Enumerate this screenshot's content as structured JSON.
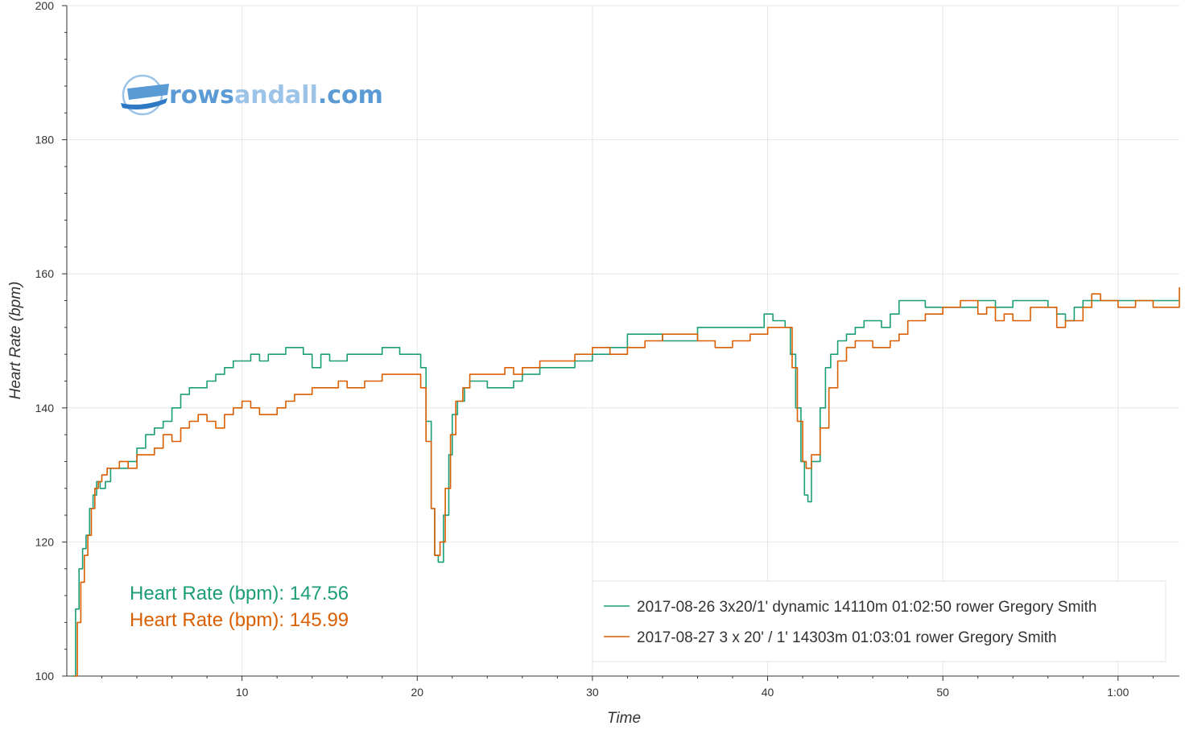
{
  "logo": {
    "part1": "rows",
    "part2": "andall",
    "part3": ".com",
    "color_main": "#5b9bd5",
    "color_light": "#9cc3e8"
  },
  "averages": [
    {
      "text": "Heart Rate (bpm): 147.56",
      "color": "#1b9e77"
    },
    {
      "text": "Heart Rate (bpm): 145.99",
      "color": "#d95f02"
    }
  ],
  "chart_data": {
    "type": "line",
    "title": "",
    "xlabel": "Time",
    "ylabel": "Heart Rate (bpm)",
    "xlim": [
      0,
      63.5
    ],
    "ylim": [
      100,
      200
    ],
    "x_unit": "minutes",
    "xticks": [
      {
        "value": 10,
        "label": "10"
      },
      {
        "value": 20,
        "label": "20"
      },
      {
        "value": 30,
        "label": "30"
      },
      {
        "value": 40,
        "label": "40"
      },
      {
        "value": 50,
        "label": "50"
      },
      {
        "value": 60,
        "label": "1:00"
      }
    ],
    "yticks": [
      {
        "value": 100,
        "label": "100"
      },
      {
        "value": 120,
        "label": "120"
      },
      {
        "value": 140,
        "label": "140"
      },
      {
        "value": 160,
        "label": "160"
      },
      {
        "value": 180,
        "label": "180"
      },
      {
        "value": 200,
        "label": "200"
      }
    ],
    "grid": true,
    "legend_position": "bottom-right",
    "series": [
      {
        "name": "2017-08-26 3x20/1' dynamic 14110m 01:02:50 rower Gregory Smith",
        "color": "#1b9e77",
        "points": [
          [
            0.3,
            100
          ],
          [
            0.5,
            110
          ],
          [
            0.7,
            116
          ],
          [
            0.9,
            119
          ],
          [
            1.1,
            121
          ],
          [
            1.3,
            125
          ],
          [
            1.5,
            127
          ],
          [
            1.7,
            129
          ],
          [
            1.9,
            128
          ],
          [
            2.2,
            129
          ],
          [
            2.5,
            131
          ],
          [
            3.0,
            131
          ],
          [
            3.5,
            132
          ],
          [
            4.0,
            134
          ],
          [
            4.5,
            136
          ],
          [
            5.0,
            137
          ],
          [
            5.5,
            138
          ],
          [
            6.0,
            140
          ],
          [
            6.5,
            142
          ],
          [
            7.0,
            143
          ],
          [
            7.5,
            143
          ],
          [
            8.0,
            144
          ],
          [
            8.5,
            145
          ],
          [
            9.0,
            146
          ],
          [
            9.5,
            147
          ],
          [
            10.0,
            147
          ],
          [
            10.5,
            148
          ],
          [
            11.0,
            147
          ],
          [
            11.5,
            148
          ],
          [
            12.0,
            148
          ],
          [
            12.5,
            149
          ],
          [
            13.0,
            149
          ],
          [
            13.5,
            148
          ],
          [
            14.0,
            146
          ],
          [
            14.5,
            148
          ],
          [
            15.0,
            147
          ],
          [
            16.0,
            148
          ],
          [
            17.0,
            148
          ],
          [
            18.0,
            149
          ],
          [
            19.0,
            148
          ],
          [
            19.8,
            148
          ],
          [
            20.2,
            146
          ],
          [
            20.5,
            138
          ],
          [
            20.8,
            125
          ],
          [
            21.0,
            118
          ],
          [
            21.2,
            117
          ],
          [
            21.5,
            124
          ],
          [
            21.8,
            133
          ],
          [
            22.0,
            139
          ],
          [
            22.3,
            141
          ],
          [
            22.7,
            143
          ],
          [
            23.0,
            144
          ],
          [
            23.5,
            144
          ],
          [
            24.0,
            143
          ],
          [
            25.0,
            143
          ],
          [
            25.5,
            144
          ],
          [
            26.0,
            145
          ],
          [
            27.0,
            146
          ],
          [
            28.0,
            146
          ],
          [
            29.0,
            147
          ],
          [
            30.0,
            148
          ],
          [
            31.0,
            149
          ],
          [
            32.0,
            151
          ],
          [
            33.0,
            151
          ],
          [
            34.0,
            150
          ],
          [
            35.0,
            150
          ],
          [
            36.0,
            152
          ],
          [
            37.0,
            152
          ],
          [
            38.0,
            152
          ],
          [
            39.0,
            152
          ],
          [
            39.8,
            154
          ],
          [
            40.3,
            153
          ],
          [
            41.0,
            152
          ],
          [
            41.3,
            148
          ],
          [
            41.6,
            140
          ],
          [
            41.9,
            132
          ],
          [
            42.1,
            127
          ],
          [
            42.3,
            126
          ],
          [
            42.5,
            132
          ],
          [
            43.0,
            140
          ],
          [
            43.3,
            146
          ],
          [
            43.6,
            148
          ],
          [
            44.0,
            150
          ],
          [
            44.5,
            151
          ],
          [
            45.0,
            152
          ],
          [
            45.5,
            153
          ],
          [
            46.0,
            153
          ],
          [
            46.5,
            152
          ],
          [
            47.0,
            154
          ],
          [
            47.5,
            156
          ],
          [
            48.0,
            156
          ],
          [
            49.0,
            155
          ],
          [
            50.0,
            155
          ],
          [
            51.0,
            155
          ],
          [
            52.0,
            156
          ],
          [
            53.0,
            155
          ],
          [
            54.0,
            156
          ],
          [
            55.0,
            156
          ],
          [
            56.0,
            155
          ],
          [
            56.5,
            154
          ],
          [
            57.0,
            153
          ],
          [
            57.5,
            155
          ],
          [
            58.0,
            156
          ],
          [
            59.0,
            156
          ],
          [
            60.0,
            156
          ],
          [
            61.0,
            156
          ],
          [
            62.0,
            156
          ],
          [
            63.0,
            156
          ],
          [
            63.5,
            156
          ]
        ]
      },
      {
        "name": "2017-08-27 3 x 20' / 1' 14303m 01:03:01 rower Gregory Smith",
        "color": "#d95f02",
        "points": [
          [
            0.4,
            100
          ],
          [
            0.6,
            108
          ],
          [
            0.8,
            114
          ],
          [
            1.0,
            118
          ],
          [
            1.2,
            121
          ],
          [
            1.4,
            125
          ],
          [
            1.6,
            128
          ],
          [
            1.8,
            129
          ],
          [
            2.0,
            130
          ],
          [
            2.3,
            131
          ],
          [
            2.6,
            131
          ],
          [
            3.0,
            132
          ],
          [
            3.5,
            131
          ],
          [
            4.0,
            133
          ],
          [
            4.5,
            133
          ],
          [
            5.0,
            134
          ],
          [
            5.5,
            136
          ],
          [
            6.0,
            135
          ],
          [
            6.5,
            137
          ],
          [
            7.0,
            138
          ],
          [
            7.5,
            139
          ],
          [
            8.0,
            138
          ],
          [
            8.5,
            137
          ],
          [
            9.0,
            139
          ],
          [
            9.5,
            140
          ],
          [
            10.0,
            141
          ],
          [
            10.5,
            140
          ],
          [
            11.0,
            139
          ],
          [
            11.5,
            139
          ],
          [
            12.0,
            140
          ],
          [
            12.5,
            141
          ],
          [
            13.0,
            142
          ],
          [
            14.0,
            143
          ],
          [
            15.0,
            143
          ],
          [
            15.5,
            144
          ],
          [
            16.0,
            143
          ],
          [
            17.0,
            144
          ],
          [
            18.0,
            145
          ],
          [
            19.0,
            145
          ],
          [
            19.8,
            145
          ],
          [
            20.2,
            143
          ],
          [
            20.5,
            135
          ],
          [
            20.8,
            125
          ],
          [
            21.0,
            118
          ],
          [
            21.3,
            120
          ],
          [
            21.6,
            128
          ],
          [
            21.9,
            136
          ],
          [
            22.2,
            141
          ],
          [
            22.6,
            143
          ],
          [
            23.0,
            145
          ],
          [
            24.0,
            145
          ],
          [
            25.0,
            146
          ],
          [
            25.5,
            145
          ],
          [
            26.0,
            146
          ],
          [
            27.0,
            147
          ],
          [
            28.0,
            147
          ],
          [
            29.0,
            148
          ],
          [
            30.0,
            149
          ],
          [
            31.0,
            148
          ],
          [
            32.0,
            149
          ],
          [
            33.0,
            150
          ],
          [
            34.0,
            151
          ],
          [
            35.0,
            151
          ],
          [
            36.0,
            150
          ],
          [
            37.0,
            149
          ],
          [
            38.0,
            150
          ],
          [
            39.0,
            151
          ],
          [
            40.0,
            152
          ],
          [
            41.0,
            152
          ],
          [
            41.4,
            146
          ],
          [
            41.7,
            138
          ],
          [
            42.0,
            132
          ],
          [
            42.2,
            131
          ],
          [
            42.5,
            133
          ],
          [
            43.0,
            137
          ],
          [
            43.5,
            143
          ],
          [
            44.0,
            147
          ],
          [
            44.5,
            149
          ],
          [
            45.0,
            150
          ],
          [
            46.0,
            149
          ],
          [
            47.0,
            150
          ],
          [
            47.5,
            151
          ],
          [
            48.0,
            153
          ],
          [
            49.0,
            154
          ],
          [
            50.0,
            155
          ],
          [
            51.0,
            156
          ],
          [
            52.0,
            154
          ],
          [
            52.5,
            155
          ],
          [
            53.0,
            153
          ],
          [
            53.5,
            154
          ],
          [
            54.0,
            153
          ],
          [
            55.0,
            155
          ],
          [
            56.0,
            155
          ],
          [
            56.5,
            152
          ],
          [
            57.0,
            153
          ],
          [
            58.0,
            155
          ],
          [
            58.5,
            157
          ],
          [
            59.0,
            156
          ],
          [
            60.0,
            155
          ],
          [
            61.0,
            156
          ],
          [
            62.0,
            155
          ],
          [
            63.0,
            155
          ],
          [
            63.5,
            158
          ]
        ]
      }
    ]
  }
}
